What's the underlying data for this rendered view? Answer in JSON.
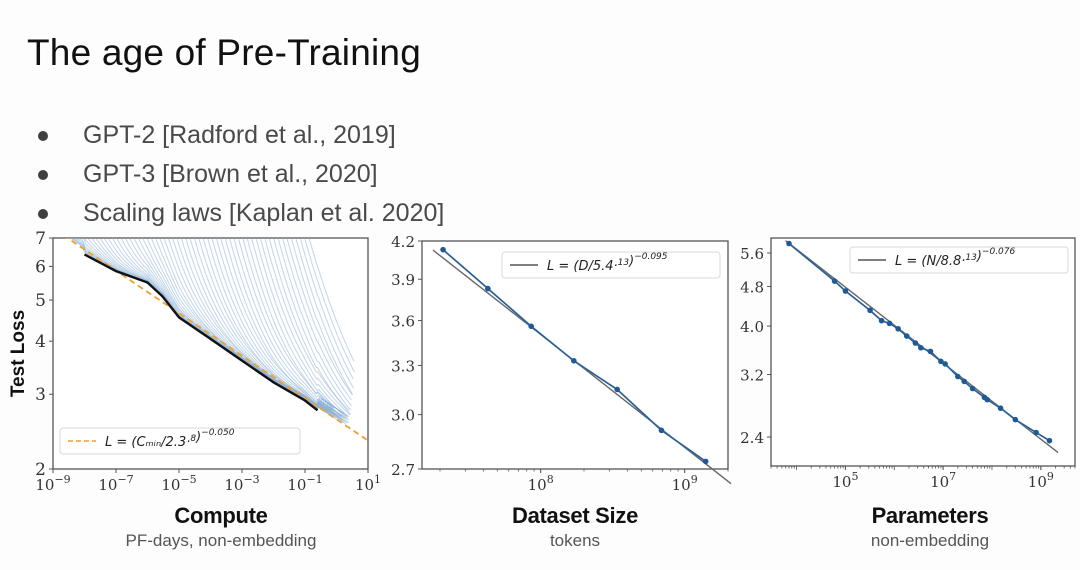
{
  "slide": {
    "title": "The age of Pre-Training",
    "bullets": [
      "GPT-2 [Radford et al., 2019]",
      "GPT-3 [Brown et al., 2020]",
      "Scaling laws [Kaplan et al. 2020]"
    ]
  },
  "captions": [
    {
      "main": "Compute",
      "sub": "PF-days, non-embedding"
    },
    {
      "main": "Dataset Size",
      "sub": "tokens"
    },
    {
      "main": "Parameters",
      "sub": "non-embedding"
    }
  ],
  "colors": {
    "curve_light": "#8fb3d6",
    "points": "#1f5a96",
    "envelope": "#111111",
    "fit_dashed": "#f0a030",
    "fit_line": "#555555",
    "frame": "#555555"
  },
  "chart_data": [
    {
      "type": "line",
      "title": "",
      "xlabel": "Compute (PF-days, non-embedding)",
      "ylabel": "Test Loss",
      "xscale": "log",
      "yscale": "log",
      "xlim": [
        1e-09,
        10
      ],
      "ylim": [
        2,
        7
      ],
      "xticks": [
        "10^-9",
        "10^-7",
        "10^-5",
        "10^-3",
        "10^-1",
        "10^1"
      ],
      "yticks": [
        2,
        3,
        4,
        5,
        6,
        7
      ],
      "legend": {
        "position": "lower left",
        "entries": [
          "L = (C_min/2.3·10^8)^-0.050"
        ]
      },
      "fit": {
        "label": "L = (C_min/2.3·10^8)^-0.050",
        "style": "dashed",
        "constant": 230000000.0,
        "exponent": -0.05
      },
      "envelope": {
        "x": [
          1e-08,
          1e-07,
          1e-06,
          3e-06,
          1e-05,
          0.0001,
          0.001,
          0.01,
          0.1,
          0.25
        ],
        "y": [
          6.4,
          5.85,
          5.5,
          5.1,
          4.55,
          4.05,
          3.6,
          3.2,
          2.9,
          2.75
        ]
      },
      "series_note": "Many light-blue individual training curves starting from L≈7 converging to the envelope"
    },
    {
      "type": "line",
      "xlabel": "Dataset Size (tokens)",
      "ylabel": "",
      "xscale": "log",
      "yscale": "log",
      "xlim": [
        15000000.0,
        2000000000.0
      ],
      "ylim": [
        2.7,
        4.2
      ],
      "xticks": [
        "10^8",
        "10^9"
      ],
      "yticks": [
        2.7,
        3.0,
        3.3,
        3.6,
        3.9,
        4.2
      ],
      "legend": {
        "position": "upper right",
        "entries": [
          "L = (D/5.4·10^13)^-0.095"
        ]
      },
      "fit": {
        "label": "L = (D/5.4·10^13)^-0.095",
        "constant": 54000000000000.0,
        "exponent": -0.095
      },
      "x": [
        21000000.0,
        43000000.0,
        86000000.0,
        170000000.0,
        340000000.0,
        690000000.0,
        1400000000.0
      ],
      "y": [
        4.13,
        3.83,
        3.56,
        3.33,
        3.15,
        2.91,
        2.74
      ]
    },
    {
      "type": "line",
      "xlabel": "Parameters (non-embedding)",
      "ylabel": "",
      "xscale": "log",
      "yscale": "log",
      "xlim": [
        3000.0,
        5000000000.0
      ],
      "ylim": [
        2.1,
        6.0
      ],
      "xticks": [
        "10^5",
        "10^7",
        "10^9"
      ],
      "yticks": [
        2.4,
        3.2,
        4.0,
        4.8,
        5.6
      ],
      "legend": {
        "position": "upper right",
        "entries": [
          "L = (N/8.8·10^13)^-0.076"
        ]
      },
      "fit": {
        "label": "L = (N/8.8·10^13)^-0.076",
        "constant": 88000000000000.0,
        "exponent": -0.076
      },
      "x": [
        7000.0,
        60000.0,
        100000.0,
        320000.0,
        550000.0,
        800000.0,
        1200000.0,
        1800000.0,
        2700000.0,
        3500000.0,
        5500000.0,
        9000000.0,
        11000000.0,
        20000000.0,
        27000000.0,
        40000000.0,
        70000000.0,
        80000000.0,
        150000000.0,
        300000000.0,
        800000000.0,
        1500000000.0
      ],
      "y": [
        5.85,
        4.92,
        4.7,
        4.3,
        4.1,
        4.05,
        3.95,
        3.82,
        3.7,
        3.62,
        3.56,
        3.4,
        3.36,
        3.17,
        3.1,
        3.0,
        2.88,
        2.85,
        2.74,
        2.6,
        2.45,
        2.36
      ]
    }
  ]
}
